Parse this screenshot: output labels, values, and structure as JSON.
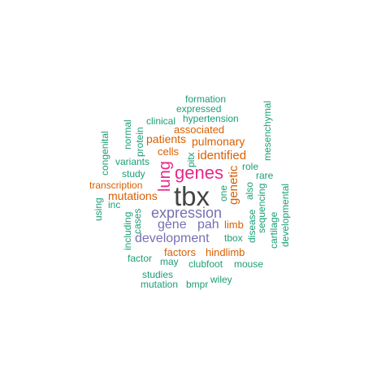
{
  "colors": {
    "green": "#1b9e77",
    "orange": "#d95f02",
    "purple": "#7570b3",
    "magenta": "#e7298a",
    "gray": "#444444"
  },
  "words": {
    "tbx": "tbx",
    "genes": "genes",
    "lung": "lung",
    "expression": "expression",
    "development": "development",
    "gene": "gene",
    "pah": "pah",
    "identified": "identified",
    "patients": "patients",
    "pulmonary": "pulmonary",
    "associated": "associated",
    "cells": "cells",
    "genetic": "genetic",
    "mutations": "mutations",
    "transcription": "transcription",
    "limb": "limb",
    "factors": "factors",
    "hindlimb": "hindlimb",
    "formation": "formation",
    "expressed": "expressed",
    "clinical": "clinical",
    "hypertension": "hypertension",
    "normal": "normal",
    "protein": "protein",
    "congenital": "congenital",
    "mesenchymal": "mesenchymal",
    "pitx": "pitx",
    "variants": "variants",
    "study": "study",
    "role": "role",
    "rare": "rare",
    "one": "one",
    "also": "also",
    "inc": "inc",
    "using": "using",
    "including": "including",
    "cases": "cases",
    "sequencing": "sequencing",
    "disease": "disease",
    "cartilage": "cartilage",
    "developmental": "developmental",
    "tbox": "tbox",
    "factor": "factor",
    "may": "may",
    "clubfoot": "clubfoot",
    "mouse": "mouse",
    "studies": "studies",
    "mutation": "mutation",
    "bmpr": "bmpr",
    "wiley": "wiley"
  }
}
